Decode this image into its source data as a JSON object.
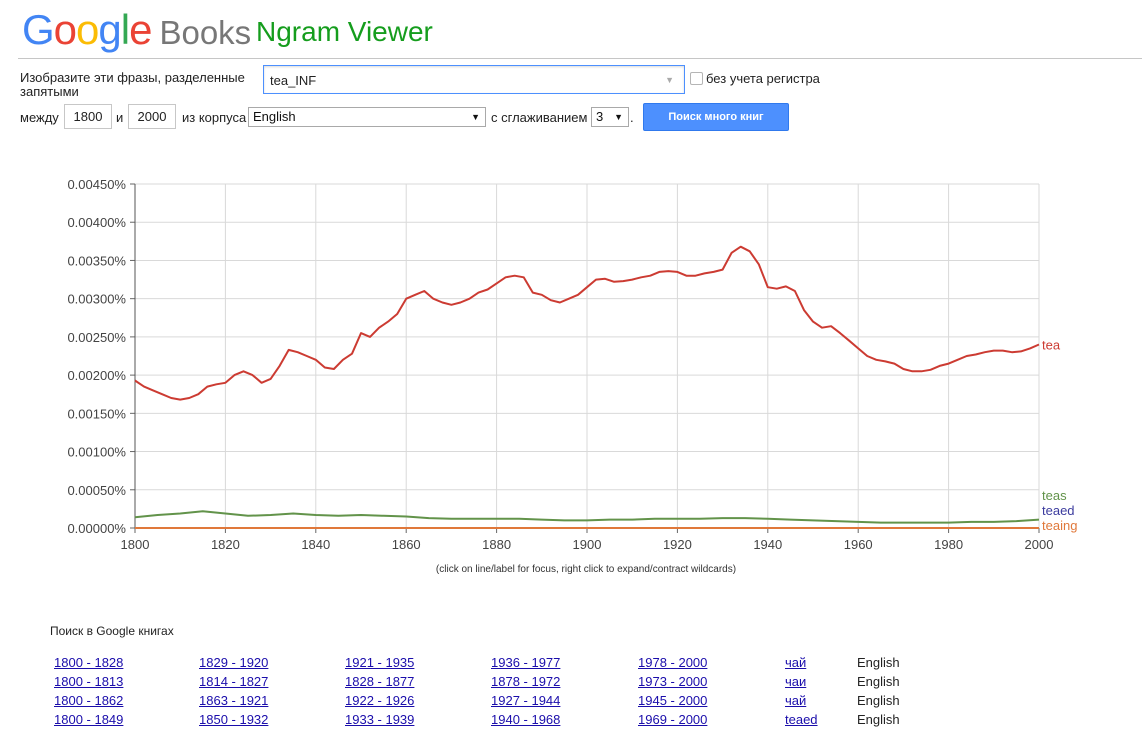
{
  "header": {
    "logo_google": "Google",
    "logo_books": "Books",
    "title": "Ngram Viewer"
  },
  "form": {
    "query_label": "Изобразите эти фразы, разделенные запятыми",
    "query_value": "tea_INF",
    "case_insensitive_label": "без учета регистра",
    "between_label": "между",
    "year_from": "1800",
    "and_label": "и",
    "year_to": "2000",
    "corpus_label": "из корпуса",
    "corpus_value": "English",
    "smoothing_label": "с сглаживанием",
    "smoothing_value": "3",
    "dot": ".",
    "search_button": "Поиск много книг"
  },
  "chart_data": {
    "type": "line",
    "xlim": [
      1800,
      2000
    ],
    "ylim": [
      0,
      0.0045
    ],
    "x_ticks": [
      "1800",
      "1820",
      "1840",
      "1860",
      "1880",
      "1900",
      "1920",
      "1940",
      "1960",
      "1980",
      "2000"
    ],
    "y_ticks": [
      "0.00000%",
      "0.00050%",
      "0.00100%",
      "0.00150%",
      "0.00200%",
      "0.00250%",
      "0.00300%",
      "0.00350%",
      "0.00400%",
      "0.00450%"
    ],
    "grid": true,
    "series": [
      {
        "name": "tea",
        "color": "#cc3b32",
        "x": [
          1800,
          1802,
          1804,
          1806,
          1808,
          1810,
          1812,
          1814,
          1816,
          1818,
          1820,
          1822,
          1824,
          1826,
          1828,
          1830,
          1832,
          1834,
          1836,
          1838,
          1840,
          1842,
          1844,
          1846,
          1848,
          1850,
          1852,
          1854,
          1856,
          1858,
          1860,
          1862,
          1864,
          1866,
          1868,
          1870,
          1872,
          1874,
          1876,
          1878,
          1880,
          1882,
          1884,
          1886,
          1888,
          1890,
          1892,
          1894,
          1896,
          1898,
          1900,
          1902,
          1904,
          1906,
          1908,
          1910,
          1912,
          1914,
          1916,
          1918,
          1920,
          1922,
          1924,
          1926,
          1928,
          1930,
          1932,
          1934,
          1936,
          1938,
          1940,
          1942,
          1944,
          1946,
          1948,
          1950,
          1952,
          1954,
          1956,
          1958,
          1960,
          1962,
          1964,
          1966,
          1968,
          1970,
          1972,
          1974,
          1976,
          1978,
          1980,
          1982,
          1984,
          1986,
          1988,
          1990,
          1992,
          1994,
          1996,
          1998,
          2000
        ],
        "y": [
          0.00193,
          0.00185,
          0.0018,
          0.00175,
          0.0017,
          0.00168,
          0.0017,
          0.00175,
          0.00185,
          0.00188,
          0.0019,
          0.002,
          0.00205,
          0.002,
          0.0019,
          0.00195,
          0.00212,
          0.00233,
          0.0023,
          0.00225,
          0.0022,
          0.0021,
          0.00208,
          0.0022,
          0.00228,
          0.00255,
          0.0025,
          0.00262,
          0.0027,
          0.0028,
          0.003,
          0.00305,
          0.0031,
          0.003,
          0.00295,
          0.00292,
          0.00295,
          0.003,
          0.00308,
          0.00312,
          0.0032,
          0.00328,
          0.0033,
          0.00328,
          0.00308,
          0.00305,
          0.00298,
          0.00295,
          0.003,
          0.00305,
          0.00315,
          0.00325,
          0.00326,
          0.00322,
          0.00323,
          0.00325,
          0.00328,
          0.0033,
          0.00335,
          0.00336,
          0.00335,
          0.0033,
          0.0033,
          0.00333,
          0.00335,
          0.00338,
          0.0036,
          0.00368,
          0.00362,
          0.00345,
          0.00315,
          0.00313,
          0.00316,
          0.0031,
          0.00285,
          0.0027,
          0.00262,
          0.00264,
          0.00255,
          0.00245,
          0.00235,
          0.00225,
          0.0022,
          0.00218,
          0.00215,
          0.00208,
          0.00205,
          0.00205,
          0.00207,
          0.00212,
          0.00215,
          0.0022,
          0.00225,
          0.00227,
          0.0023,
          0.00232,
          0.00232,
          0.0023,
          0.00231,
          0.00235,
          0.0024
        ]
      },
      {
        "name": "teas",
        "color": "#62934a",
        "x": [
          1800,
          1805,
          1810,
          1815,
          1820,
          1825,
          1830,
          1835,
          1840,
          1845,
          1850,
          1855,
          1860,
          1865,
          1870,
          1875,
          1880,
          1885,
          1890,
          1895,
          1900,
          1905,
          1910,
          1915,
          1920,
          1925,
          1930,
          1935,
          1940,
          1945,
          1950,
          1955,
          1960,
          1965,
          1970,
          1975,
          1980,
          1985,
          1990,
          1995,
          2000
        ],
        "y": [
          0.00014,
          0.00017,
          0.00019,
          0.00022,
          0.00019,
          0.00016,
          0.00017,
          0.00019,
          0.00017,
          0.00016,
          0.00017,
          0.00016,
          0.00015,
          0.00013,
          0.00012,
          0.00012,
          0.00012,
          0.00012,
          0.00011,
          0.0001,
          0.0001,
          0.00011,
          0.00011,
          0.00012,
          0.00012,
          0.00012,
          0.00013,
          0.00013,
          0.00012,
          0.00011,
          0.0001,
          9e-05,
          8e-05,
          7e-05,
          7e-05,
          7e-05,
          7e-05,
          8e-05,
          8e-05,
          9e-05,
          0.00011
        ]
      },
      {
        "name": "teaed",
        "color": "#3b3b9e",
        "x": [
          1800,
          2000
        ],
        "y": [
          3e-07,
          3e-07
        ]
      },
      {
        "name": "teaing",
        "color": "#e0783a",
        "x": [
          1800,
          2000
        ],
        "y": [
          1e-07,
          1e-07
        ]
      }
    ],
    "caption": "(click on line/label for focus, right click to expand/contract wildcards)"
  },
  "books": {
    "heading": "Поиск в Google книгах",
    "rows": [
      {
        "ranges": [
          "1800 - 1828",
          "1829 - 1920",
          "1921 - 1935",
          "1936 - 1977",
          "1978 - 2000"
        ],
        "term": "чай",
        "lang": "English"
      },
      {
        "ranges": [
          "1800 - 1813",
          "1814 - 1827",
          "1828 - 1877",
          "1878 - 1972",
          "1973 - 2000"
        ],
        "term": "чаи",
        "lang": "English"
      },
      {
        "ranges": [
          "1800 - 1862",
          "1863 - 1921",
          "1922 - 1926",
          "1927 - 1944",
          "1945 - 2000"
        ],
        "term": "чай",
        "lang": "English"
      },
      {
        "ranges": [
          "1800 - 1849",
          "1850 - 1932",
          "1933 - 1939",
          "1940 - 1968",
          "1969 - 2000"
        ],
        "term": "teaed",
        "lang": "English"
      }
    ]
  }
}
